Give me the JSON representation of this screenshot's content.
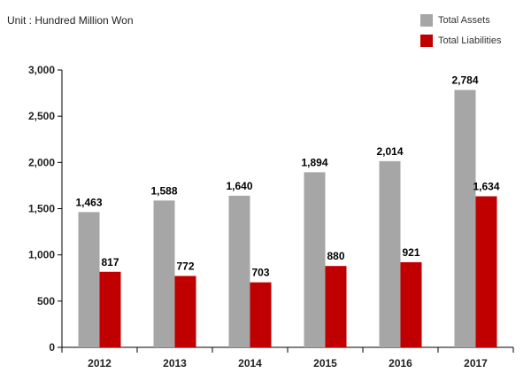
{
  "chart_data": {
    "type": "bar",
    "unit_note": "Unit : Hundred Million Won",
    "categories": [
      "2012",
      "2013",
      "2014",
      "2015",
      "2016",
      "2017"
    ],
    "series": [
      {
        "name": "Total Assets",
        "color": "#a6a6a6",
        "values": [
          1463,
          1588,
          1640,
          1894,
          2014,
          2784
        ],
        "labels": [
          "1,463",
          "1,588",
          "1,640",
          "1,894",
          "2,014",
          "2,784"
        ]
      },
      {
        "name": "Total Liabilities",
        "color": "#c00000",
        "values": [
          817,
          772,
          703,
          880,
          921,
          1634
        ],
        "labels": [
          "817",
          "772",
          "703",
          "880",
          "921",
          "1,634"
        ]
      }
    ],
    "ylim": [
      0,
      3000
    ],
    "yticks": [
      0,
      500,
      1000,
      1500,
      2000,
      2500,
      3000
    ],
    "ytick_labels": [
      "0",
      "500",
      "1,000",
      "1,500",
      "2,000",
      "2,500",
      "3,000"
    ],
    "grid": false,
    "legend_position": "top-right"
  }
}
